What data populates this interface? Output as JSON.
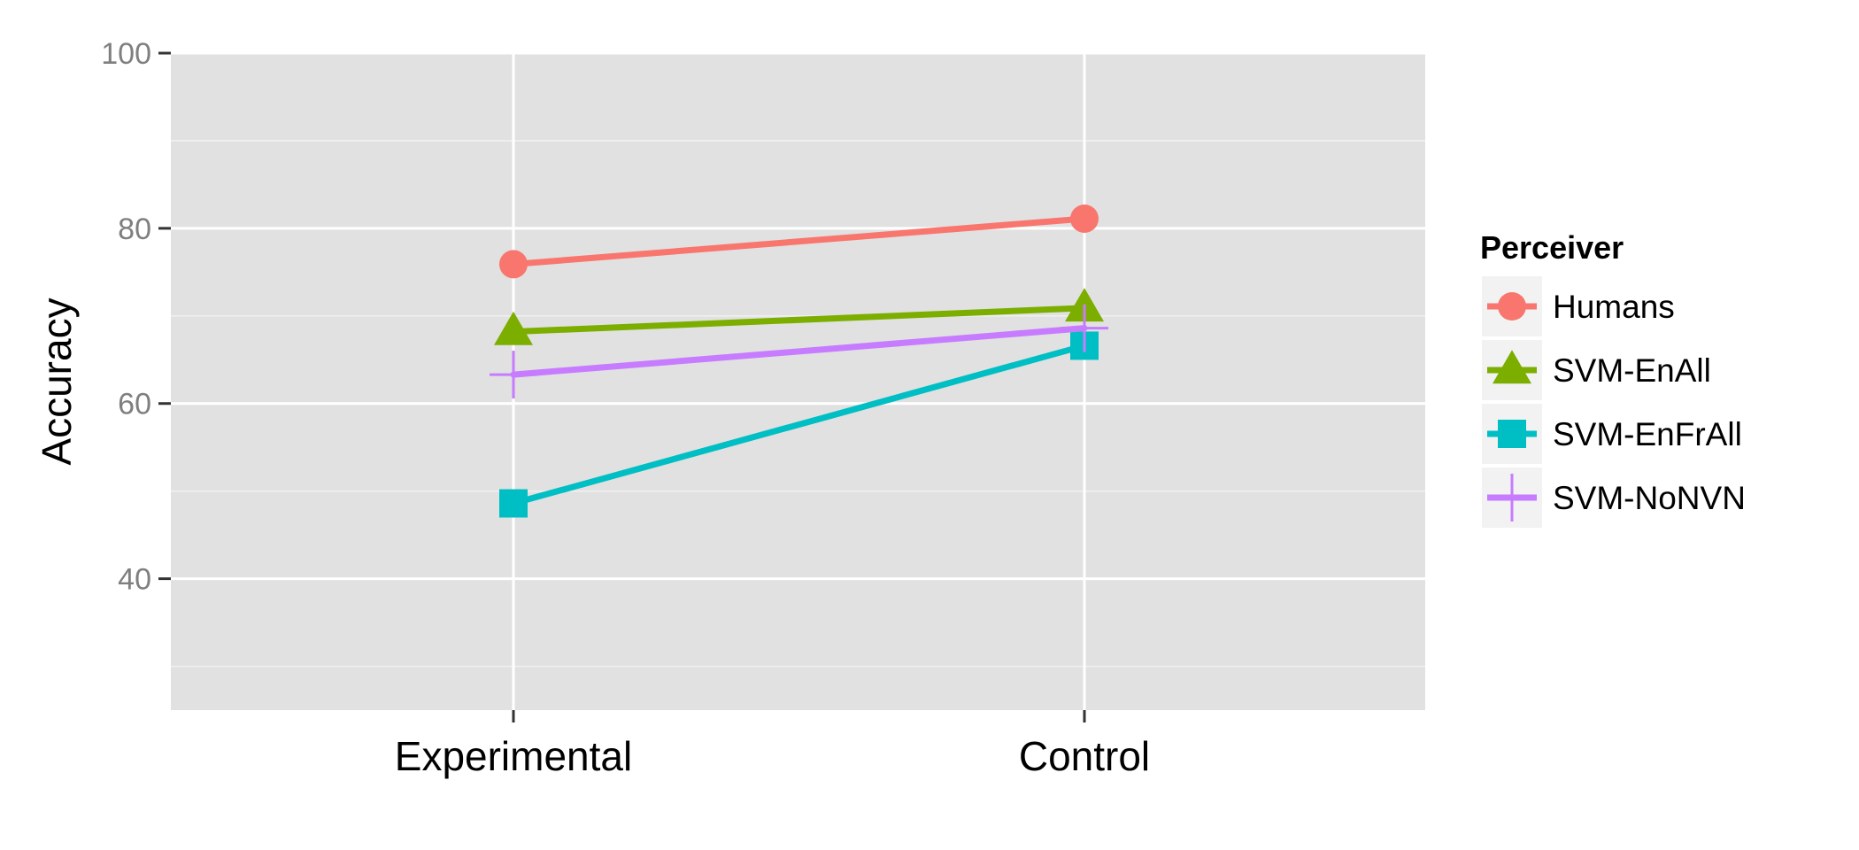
{
  "chart_data": {
    "type": "line",
    "categories": [
      "Experimental",
      "Control"
    ],
    "ylabel": "Accuracy",
    "xlabel": "",
    "title": "",
    "ylim": [
      25,
      100
    ],
    "yticks": [
      40,
      60,
      80,
      100
    ],
    "grid": true,
    "legend": {
      "title": "Perceiver",
      "position": "right"
    },
    "series": [
      {
        "name": "Humans",
        "values": [
          75.9,
          81.1
        ],
        "color": "#F8766D",
        "marker": "circle"
      },
      {
        "name": "SVM-EnAll",
        "values": [
          68.2,
          70.9
        ],
        "color": "#7CAE00",
        "marker": "triangle"
      },
      {
        "name": "SVM-EnFrAll",
        "values": [
          48.6,
          66.6
        ],
        "color": "#00BFC4",
        "marker": "square"
      },
      {
        "name": "SVM-NoNVN",
        "values": [
          63.3,
          68.6
        ],
        "color": "#C77CFF",
        "marker": "plus"
      }
    ]
  }
}
